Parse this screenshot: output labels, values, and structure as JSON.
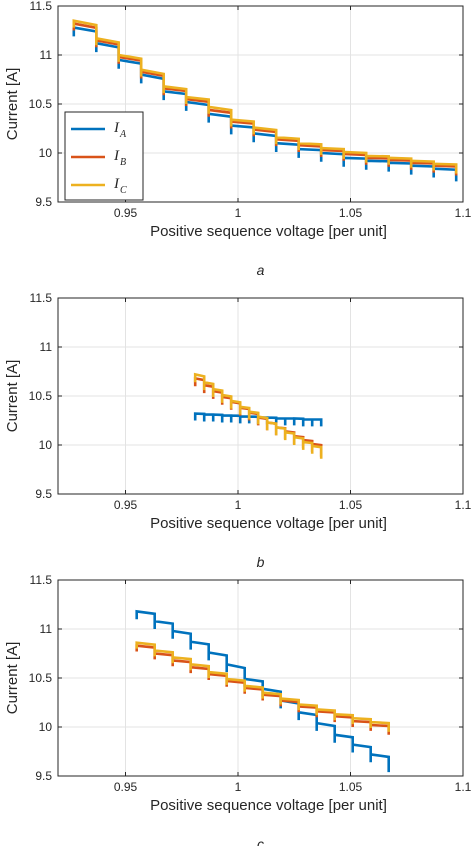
{
  "chart_data": [
    {
      "type": "line",
      "panel_label": "a",
      "xlabel": "Positive sequence voltage [per unit]",
      "ylabel": "Current [A]",
      "xlim": [
        0.92,
        1.1
      ],
      "ylim": [
        9.5,
        11.5
      ],
      "xticks": [
        0.95,
        1,
        1.05,
        1.1
      ],
      "xtick_labels": [
        "0.95",
        "1",
        "1.05",
        "1.1"
      ],
      "yticks": [
        9.5,
        10,
        10.5,
        11,
        11.5
      ],
      "ytick_labels": [
        "9.5",
        "10",
        "10.5",
        "11",
        "11.5"
      ],
      "grid": true,
      "legend": {
        "position": "left",
        "entries": [
          {
            "base": "I",
            "sub": "A",
            "color": "#0072BD"
          },
          {
            "base": "I",
            "sub": "B",
            "color": "#D95319"
          },
          {
            "base": "I",
            "sub": "C",
            "color": "#EDB120"
          }
        ]
      },
      "series": [
        {
          "name": "I_A",
          "color": "#0072BD",
          "spike": 0.09,
          "x": [
            0.927,
            0.937,
            0.947,
            0.957,
            0.967,
            0.977,
            0.987,
            0.997,
            1.007,
            1.017,
            1.027,
            1.037,
            1.047,
            1.057,
            1.067,
            1.077,
            1.087,
            1.097
          ],
          "y": [
            11.28,
            11.12,
            10.95,
            10.8,
            10.63,
            10.52,
            10.4,
            10.28,
            10.2,
            10.1,
            10.04,
            10.0,
            9.95,
            9.92,
            9.9,
            9.87,
            9.84,
            9.8
          ]
        },
        {
          "name": "I_B",
          "color": "#D95319",
          "spike": 0.07,
          "x": [
            0.927,
            0.937,
            0.947,
            0.957,
            0.967,
            0.977,
            0.987,
            0.997,
            1.007,
            1.017,
            1.027,
            1.037,
            1.047,
            1.057,
            1.067,
            1.077,
            1.087,
            1.097
          ],
          "y": [
            11.32,
            11.15,
            10.98,
            10.83,
            10.66,
            10.55,
            10.44,
            10.32,
            10.24,
            10.14,
            10.08,
            10.03,
            9.99,
            9.95,
            9.93,
            9.9,
            9.87,
            9.84
          ]
        },
        {
          "name": "I_C",
          "color": "#EDB120",
          "spike": 0.07,
          "x": [
            0.927,
            0.937,
            0.947,
            0.957,
            0.967,
            0.977,
            0.987,
            0.997,
            1.007,
            1.017,
            1.027,
            1.037,
            1.047,
            1.057,
            1.067,
            1.077,
            1.087,
            1.097
          ],
          "y": [
            11.35,
            11.17,
            11.0,
            10.85,
            10.68,
            10.57,
            10.47,
            10.34,
            10.26,
            10.16,
            10.1,
            10.05,
            10.01,
            9.97,
            9.95,
            9.92,
            9.89,
            9.86
          ]
        }
      ]
    },
    {
      "type": "line",
      "panel_label": "b",
      "xlabel": "Positive sequence voltage [per unit]",
      "ylabel": "Current [A]",
      "xlim": [
        0.92,
        1.1
      ],
      "ylim": [
        9.5,
        11.5
      ],
      "xticks": [
        0.95,
        1,
        1.05,
        1.1
      ],
      "xtick_labels": [
        "0.95",
        "1",
        "1.05",
        "1.1"
      ],
      "yticks": [
        9.5,
        10,
        10.5,
        11,
        11.5
      ],
      "ytick_labels": [
        "9.5",
        "10",
        "10.5",
        "11",
        "11.5"
      ],
      "grid": true,
      "series": [
        {
          "name": "I_A",
          "color": "#0072BD",
          "spike": 0.07,
          "x": [
            0.981,
            0.985,
            0.989,
            0.993,
            0.997,
            1.001,
            1.005,
            1.009,
            1.013,
            1.017,
            1.021,
            1.025,
            1.029,
            1.033,
            1.037
          ],
          "y": [
            10.32,
            10.31,
            10.31,
            10.3,
            10.3,
            10.29,
            10.29,
            10.28,
            10.28,
            10.27,
            10.27,
            10.27,
            10.26,
            10.26,
            10.26
          ]
        },
        {
          "name": "I_B",
          "color": "#D95319",
          "spike": 0.08,
          "x": [
            0.981,
            0.985,
            0.989,
            0.993,
            0.997,
            1.001,
            1.005,
            1.009,
            1.013,
            1.017,
            1.021,
            1.025,
            1.029,
            1.033,
            1.037
          ],
          "y": [
            10.68,
            10.61,
            10.55,
            10.49,
            10.44,
            10.38,
            10.33,
            10.28,
            10.23,
            10.18,
            10.14,
            10.09,
            10.05,
            10.01,
            9.96
          ]
        },
        {
          "name": "I_C",
          "color": "#EDB120",
          "spike": 0.08,
          "x": [
            0.981,
            0.985,
            0.989,
            0.993,
            0.997,
            1.001,
            1.005,
            1.009,
            1.013,
            1.017,
            1.021,
            1.025,
            1.029,
            1.033,
            1.037
          ],
          "y": [
            10.72,
            10.64,
            10.57,
            10.51,
            10.45,
            10.39,
            10.34,
            10.29,
            10.23,
            10.18,
            10.13,
            10.08,
            10.03,
            9.99,
            9.94
          ]
        }
      ]
    },
    {
      "type": "line",
      "panel_label": "c",
      "xlabel": "Positive sequence voltage [per unit]",
      "ylabel": "Current [A]",
      "xlim": [
        0.92,
        1.1
      ],
      "ylim": [
        9.5,
        11.5
      ],
      "xticks": [
        0.95,
        1,
        1.05,
        1.1
      ],
      "xtick_labels": [
        "0.95",
        "1",
        "1.05",
        "1.1"
      ],
      "yticks": [
        9.5,
        10,
        10.5,
        11,
        11.5
      ],
      "ytick_labels": [
        "9.5",
        "10",
        "10.5",
        "11",
        "11.5"
      ],
      "grid": true,
      "series": [
        {
          "name": "I_A",
          "color": "#0072BD",
          "spike": 0.08,
          "x": [
            0.955,
            0.963,
            0.971,
            0.979,
            0.987,
            0.995,
            1.003,
            1.011,
            1.019,
            1.027,
            1.035,
            1.043,
            1.051,
            1.059,
            1.067
          ],
          "y": [
            11.18,
            11.08,
            10.98,
            10.87,
            10.76,
            10.64,
            10.49,
            10.39,
            10.27,
            10.15,
            10.04,
            9.92,
            9.82,
            9.72,
            9.62
          ]
        },
        {
          "name": "I_B",
          "color": "#D95319",
          "spike": 0.06,
          "x": [
            0.955,
            0.963,
            0.971,
            0.979,
            0.987,
            0.995,
            1.003,
            1.011,
            1.019,
            1.027,
            1.035,
            1.043,
            1.051,
            1.059,
            1.067
          ],
          "y": [
            10.83,
            10.75,
            10.68,
            10.61,
            10.54,
            10.47,
            10.4,
            10.33,
            10.27,
            10.21,
            10.16,
            10.11,
            10.06,
            10.02,
            9.98
          ]
        },
        {
          "name": "I_C",
          "color": "#EDB120",
          "spike": 0.06,
          "x": [
            0.955,
            0.963,
            0.971,
            0.979,
            0.987,
            0.995,
            1.003,
            1.011,
            1.019,
            1.027,
            1.035,
            1.043,
            1.051,
            1.059,
            1.067
          ],
          "y": [
            10.86,
            10.78,
            10.71,
            10.64,
            10.56,
            10.49,
            10.42,
            10.35,
            10.29,
            10.23,
            10.18,
            10.13,
            10.09,
            10.05,
            10.01
          ]
        }
      ]
    }
  ]
}
